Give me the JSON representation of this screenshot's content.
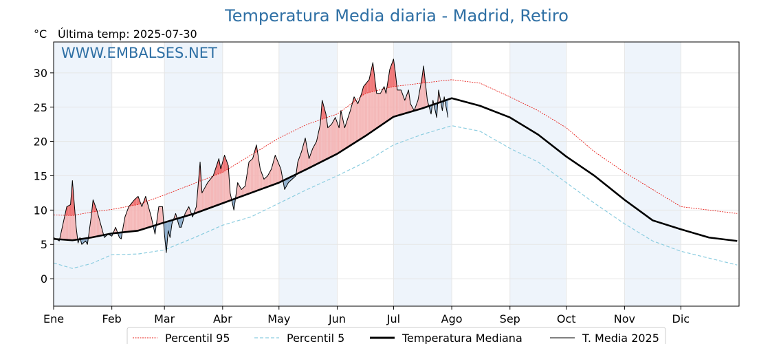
{
  "chart_data": {
    "type": "line",
    "title": "Temperatura Media diaria - Madrid, Retiro",
    "unit_label": "°C",
    "last_temp_label": "Última temp: 2025-07-30",
    "watermark": "WWW.EMBALSES.NET",
    "ylim": [
      -4,
      34.5
    ],
    "yticks": [
      0,
      5,
      10,
      15,
      20,
      25,
      30
    ],
    "grid": true,
    "months": [
      "Ene",
      "Feb",
      "Mar",
      "Abr",
      "May",
      "Jun",
      "Jul",
      "Ago",
      "Sep",
      "Oct",
      "Nov",
      "Dic"
    ],
    "month_start_days": [
      0,
      31,
      59,
      90,
      120,
      151,
      181,
      212,
      243,
      273,
      304,
      334
    ],
    "total_days": 365,
    "legend_position": "bottom",
    "legend": [
      {
        "key": "p95",
        "label": "Percentil 95"
      },
      {
        "key": "p5",
        "label": "Percentil 5"
      },
      {
        "key": "median",
        "label": "Temperatura Mediana"
      },
      {
        "key": "t2025",
        "label": "T. Media 2025"
      }
    ],
    "colors": {
      "p95": "#e8231e",
      "p5": "#8ccde0",
      "median": "#000000",
      "t2025": "#000000",
      "above_fill": "#f4b3b3",
      "above_p95_fill": "#ee6a6a",
      "below_fill": "#87a9c9",
      "band_fill": "#eef4fb",
      "title": "#2e6fa4"
    },
    "series": [
      {
        "name": "Percentil 95",
        "key": "p95",
        "x": [
          0,
          10,
          20,
          31,
          45,
          59,
          75,
          90,
          105,
          120,
          135,
          151,
          166,
          181,
          196,
          212,
          227,
          243,
          258,
          273,
          288,
          304,
          319,
          334,
          349,
          364
        ],
        "values": [
          9.3,
          9.2,
          9.7,
          10.1,
          10.8,
          12.2,
          13.9,
          15.5,
          18.0,
          20.5,
          22.5,
          24.0,
          27.0,
          28.0,
          28.5,
          29.0,
          28.5,
          26.5,
          24.5,
          22.0,
          18.5,
          15.5,
          13.0,
          10.5,
          10.0,
          9.5
        ]
      },
      {
        "name": "Percentil 5",
        "key": "p5",
        "x": [
          0,
          10,
          20,
          31,
          45,
          59,
          75,
          90,
          105,
          120,
          135,
          151,
          166,
          181,
          196,
          212,
          227,
          243,
          258,
          273,
          288,
          304,
          319,
          334,
          349,
          364
        ],
        "values": [
          2.3,
          1.5,
          2.2,
          3.5,
          3.6,
          4.2,
          6.0,
          7.8,
          9.0,
          11.0,
          13.0,
          15.0,
          17.0,
          19.5,
          21.0,
          22.3,
          21.5,
          19.0,
          17.0,
          14.0,
          11.0,
          8.0,
          5.5,
          4.0,
          3.0,
          2.0
        ]
      },
      {
        "name": "Temperatura Mediana",
        "key": "median",
        "x": [
          0,
          10,
          20,
          31,
          45,
          59,
          75,
          90,
          105,
          120,
          135,
          151,
          166,
          181,
          196,
          212,
          227,
          243,
          258,
          273,
          288,
          304,
          319,
          334,
          349,
          364
        ],
        "values": [
          5.8,
          5.6,
          6.0,
          6.6,
          7.0,
          8.2,
          9.5,
          11.0,
          12.5,
          14.0,
          16.0,
          18.2,
          20.8,
          23.6,
          24.8,
          26.3,
          25.2,
          23.5,
          21.0,
          17.8,
          15.0,
          11.5,
          8.5,
          7.2,
          6.0,
          5.5
        ]
      },
      {
        "name": "T. Media 2025",
        "key": "t2025",
        "x": [
          0,
          3,
          5,
          7,
          9,
          10,
          12,
          13,
          14,
          15,
          17,
          18,
          20,
          21,
          23,
          24,
          26,
          27,
          29,
          31,
          33,
          35,
          36,
          37,
          38,
          40,
          43,
          45,
          47,
          49,
          51,
          52,
          54,
          56,
          58,
          59,
          60,
          61,
          62,
          63,
          65,
          67,
          68,
          70,
          72,
          74,
          76,
          78,
          79,
          82,
          85,
          88,
          89,
          91,
          93,
          94,
          96,
          98,
          100,
          102,
          104,
          106,
          108,
          110,
          112,
          114,
          116,
          118,
          121,
          123,
          125,
          127,
          129,
          130,
          132,
          134,
          136,
          138,
          140,
          142,
          143,
          145,
          146,
          148,
          150,
          152,
          153,
          155,
          158,
          160,
          162,
          164,
          165,
          168,
          170,
          172,
          174,
          176,
          177,
          179,
          181,
          182,
          183,
          185,
          187,
          189,
          190,
          192,
          194,
          196,
          197,
          199,
          201,
          202,
          204,
          205,
          207,
          208,
          210
        ],
        "values": [
          6.0,
          5.5,
          8.0,
          10.5,
          10.8,
          14.3,
          7.5,
          5.2,
          6.0,
          5.0,
          5.5,
          5.0,
          9.0,
          11.5,
          10.0,
          9.0,
          7.0,
          6.0,
          6.5,
          6.2,
          7.5,
          6.0,
          5.8,
          7.5,
          9.0,
          10.5,
          11.5,
          12.0,
          10.5,
          12.0,
          10.0,
          9.0,
          6.5,
          10.5,
          10.5,
          6.5,
          3.8,
          7.0,
          6.0,
          8.0,
          9.5,
          7.5,
          7.5,
          9.5,
          10.5,
          9.0,
          10.5,
          17.0,
          12.5,
          14.0,
          15.0,
          17.5,
          16.0,
          18.0,
          16.5,
          12.5,
          10.0,
          14.0,
          13.0,
          13.5,
          17.0,
          17.5,
          19.5,
          16.0,
          14.5,
          15.0,
          16.0,
          18.0,
          16.0,
          13.0,
          14.0,
          14.5,
          15.0,
          17.0,
          18.5,
          20.5,
          17.5,
          19.0,
          20.0,
          22.5,
          26.0,
          24.0,
          22.0,
          22.5,
          23.5,
          22.0,
          24.5,
          22.0,
          24.5,
          26.5,
          25.5,
          27.0,
          28.0,
          29.0,
          31.5,
          27.0,
          27.0,
          28.0,
          27.0,
          30.5,
          32.0,
          30.0,
          27.5,
          27.5,
          26.0,
          27.5,
          25.5,
          24.5,
          26.0,
          29.0,
          31.0,
          26.0,
          24.0,
          26.0,
          23.5,
          27.5,
          24.5,
          26.5,
          23.5
        ]
      }
    ]
  }
}
